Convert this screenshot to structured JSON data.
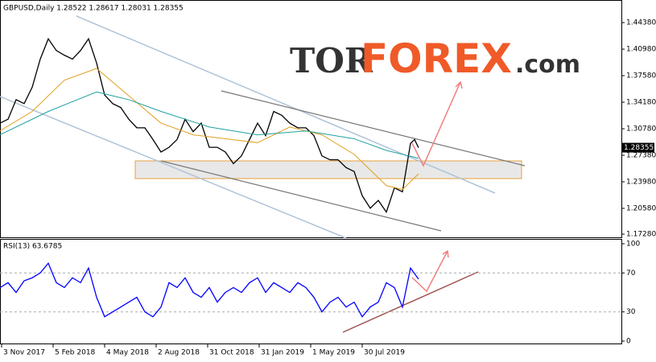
{
  "header": {
    "tor": "TOR",
    "forex": "FOREX",
    "com": ".com"
  },
  "chart_data": [
    {
      "type": "line",
      "title": "GBPUSD,Daily  1.28522 1.28617 1.28031 1.28355",
      "last_price": {
        "value": 1.28355,
        "label": "1.28355"
      },
      "xlim": [
        0,
        772
      ],
      "ylim": [
        1.1687,
        1.4717
      ],
      "yticks": [
        {
          "value": 1.4438,
          "label": "1.44380"
        },
        {
          "value": 1.4098,
          "label": "1.40980"
        },
        {
          "value": 1.3758,
          "label": "1.37580"
        },
        {
          "value": 1.3418,
          "label": "1.34180"
        },
        {
          "value": 1.3078,
          "label": "1.30780"
        },
        {
          "value": 1.2738,
          "label": "1.27380"
        },
        {
          "value": 1.2398,
          "label": "1.23980"
        },
        {
          "value": 1.2058,
          "label": "1.20580"
        },
        {
          "value": 1.1728,
          "label": "1.17280"
        }
      ],
      "series": [
        {
          "color": "#000000",
          "x": [
            0,
            10,
            20,
            30,
            40,
            50,
            60,
            70,
            80,
            90,
            100,
            110,
            120,
            130,
            140,
            150,
            160,
            170,
            180,
            190,
            200,
            210,
            220,
            230,
            240,
            250,
            260,
            270,
            280,
            290,
            300,
            310,
            320,
            330,
            340,
            350,
            360,
            370,
            380,
            390,
            400,
            410,
            420,
            430,
            440,
            450,
            460,
            470,
            480,
            490,
            500,
            510,
            515,
            520
          ],
          "values": [
            1.315,
            1.32,
            1.345,
            1.34,
            1.361,
            1.397,
            1.423,
            1.408,
            1.402,
            1.397,
            1.408,
            1.423,
            1.392,
            1.351,
            1.34,
            1.335,
            1.32,
            1.309,
            1.309,
            1.294,
            1.278,
            1.284,
            1.294,
            1.32,
            1.304,
            1.315,
            1.284,
            1.284,
            1.278,
            1.263,
            1.273,
            1.294,
            1.315,
            1.299,
            1.33,
            1.325,
            1.315,
            1.309,
            1.309,
            1.299,
            1.273,
            1.268,
            1.268,
            1.258,
            1.253,
            1.222,
            1.206,
            1.216,
            1.201,
            1.232,
            1.227,
            1.289,
            1.294,
            1.28355
          ]
        },
        {
          "color": "#e0a020",
          "x": [
            0,
            40,
            80,
            120,
            160,
            200,
            240,
            280,
            320,
            360,
            400,
            440,
            480,
            500,
            520
          ],
          "values": [
            1.305,
            1.33,
            1.37,
            1.385,
            1.35,
            1.315,
            1.3,
            1.295,
            1.29,
            1.31,
            1.3,
            1.275,
            1.235,
            1.23,
            1.25
          ]
        },
        {
          "color": "#20a0a0",
          "x": [
            0,
            60,
            120,
            160,
            200,
            260,
            320,
            380,
            440,
            480,
            520
          ],
          "values": [
            1.3,
            1.33,
            1.355,
            1.345,
            1.33,
            1.31,
            1.3,
            1.305,
            1.295,
            1.28,
            1.27
          ]
        }
      ]
    },
    {
      "type": "line",
      "title": "RSI(13) 63.6785",
      "xlim": [
        0,
        772
      ],
      "ylim": [
        0,
        100
      ],
      "yticks": [
        100,
        70,
        30,
        0
      ],
      "xticks": [
        {
          "value": 2,
          "label": "3 Nov 2017"
        },
        {
          "value": 66,
          "label": "5 Feb 2018"
        },
        {
          "value": 130,
          "label": "4 May 2018"
        },
        {
          "value": 194,
          "label": "2 Aug 2018"
        },
        {
          "value": 258,
          "label": "31 Oct 2018"
        },
        {
          "value": 322,
          "label": "31 Jan 2019"
        },
        {
          "value": 386,
          "label": "1 May 2019"
        },
        {
          "value": 450,
          "label": "30 Jul 2019"
        }
      ],
      "series": [
        {
          "color": "#0000ff",
          "x": [
            0,
            10,
            20,
            30,
            40,
            50,
            60,
            70,
            80,
            90,
            100,
            110,
            120,
            130,
            140,
            150,
            160,
            170,
            180,
            190,
            200,
            210,
            220,
            230,
            240,
            250,
            260,
            270,
            280,
            290,
            300,
            310,
            320,
            330,
            340,
            350,
            360,
            370,
            380,
            390,
            400,
            410,
            420,
            430,
            440,
            450,
            460,
            470,
            480,
            490,
            500,
            510,
            520
          ],
          "values": [
            55,
            60,
            50,
            62,
            65,
            70,
            80,
            60,
            55,
            65,
            60,
            75,
            45,
            25,
            30,
            35,
            40,
            45,
            30,
            25,
            35,
            60,
            55,
            65,
            50,
            45,
            55,
            40,
            50,
            55,
            50,
            60,
            65,
            50,
            60,
            55,
            50,
            60,
            55,
            45,
            30,
            40,
            45,
            35,
            40,
            25,
            35,
            40,
            60,
            55,
            35,
            75,
            63.6785
          ]
        }
      ]
    }
  ]
}
